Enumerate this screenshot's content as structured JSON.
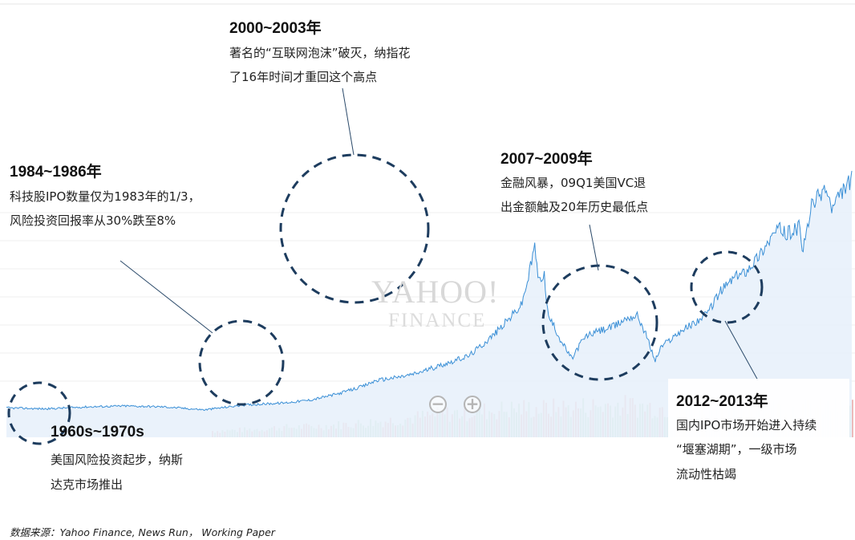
{
  "chart_data": {
    "type": "area",
    "series": [
      {
        "x": [
          1960,
          1963,
          1966,
          1969,
          1972,
          1975,
          1978,
          1981,
          1983,
          1985,
          1987,
          1988,
          1990,
          1991,
          1993,
          1995,
          1996,
          1997,
          1998,
          1999,
          1999.5,
          2000,
          2000.3,
          2000.7,
          2001,
          2001.5,
          2002,
          2002.8,
          2003.5,
          2004,
          2005,
          2006,
          2007,
          2007.8,
          2008.5,
          2009.1,
          2009.6,
          2010,
          2011,
          2012,
          2013,
          2014,
          2015,
          2016,
          2017,
          2018,
          2018.5,
          2019,
          2020,
          2020.3,
          2021,
          2021.5,
          2022,
          2022.5,
          2023,
          2023.5,
          2024
        ],
        "values": [
          3.0,
          2.9,
          3.1,
          3.2,
          3.1,
          2.8,
          3.3,
          3.5,
          3.8,
          4.4,
          5.2,
          5.8,
          6.2,
          6.5,
          7.4,
          8.3,
          9.4,
          10.6,
          12.0,
          13.5,
          16.2,
          19.5,
          15.8,
          16.8,
          12.4,
          11.2,
          9.8,
          8.0,
          9.7,
          10.4,
          10.9,
          11.3,
          12.2,
          12.4,
          10.2,
          7.8,
          9.3,
          9.7,
          10.8,
          11.6,
          12.5,
          14.8,
          16.2,
          17.0,
          18.6,
          20.6,
          21.3,
          20.7,
          21.4,
          19.0,
          23.8,
          24.6,
          25.5,
          23.2,
          24.4,
          25.5,
          26.3
        ]
      }
    ],
    "volume": [
      0.2,
      0.22,
      0.25,
      0.3,
      0.32,
      0.35,
      0.4,
      0.45,
      0.52,
      0.6,
      0.68,
      0.75,
      0.8,
      0.85,
      0.9,
      0.88,
      0.92,
      0.95,
      1.0,
      0.97,
      0.94,
      0.9,
      0.92,
      0.95,
      0.9,
      0.93,
      0.88,
      0.9,
      0.92,
      0.95
    ],
    "annotations": [
      {
        "title": "1960s~1970s",
        "text": [
          "美国风险投资起步，纳斯",
          "达克市场推出"
        ]
      },
      {
        "title": "1984~1986年",
        "text": [
          "科技股IPO数量仅为1983年的1/3，",
          "风险投资回报率从30%跌至8%"
        ]
      },
      {
        "title": "2000~2003年",
        "text": [
          "著名的“互联网泡沫”破灭，纳指花",
          "了16年时间才重回这个高点"
        ]
      },
      {
        "title": "2007~2009年",
        "text": [
          "金融风暴，09Q1美国VC退",
          "出金额触及20年历史最低点"
        ]
      },
      {
        "title": "2012~2013年",
        "text": [
          "国内IPO市场开始进入持续",
          "“堰塞湖期”，一级市场",
          "流动性枯竭"
        ]
      }
    ],
    "watermark": [
      "YAHOO!",
      "FINANCE"
    ],
    "source": "数据来源：Yahoo Finance, News Run， Working Paper",
    "colors": {
      "line": "#3a8fd6",
      "area": "#e6f0fa",
      "circle": "#1d3c5e",
      "volume_up": "#e7a3a3",
      "volume_down": "#a9d6b6"
    }
  }
}
